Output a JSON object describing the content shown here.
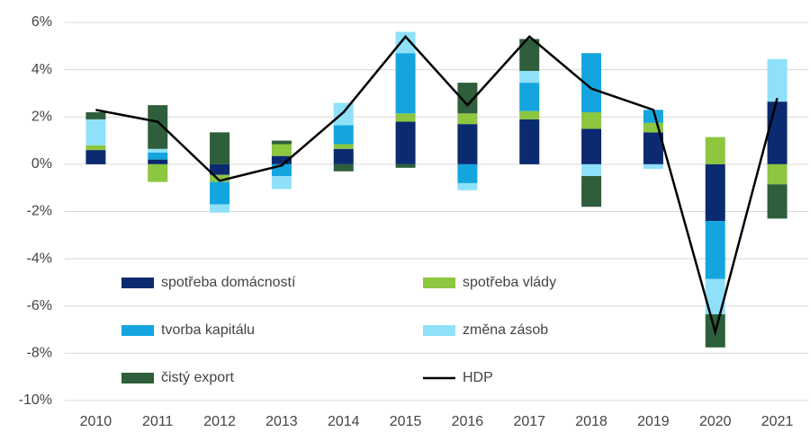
{
  "chart_data": {
    "type": "bar",
    "categories": [
      "2010",
      "2011",
      "2012",
      "2013",
      "2014",
      "2015",
      "2016",
      "2017",
      "2018",
      "2019",
      "2020",
      "2021"
    ],
    "series": [
      {
        "name": "spotřeba domácností",
        "color": "#0b2a6f",
        "values": [
          0.6,
          0.2,
          -0.45,
          0.35,
          0.65,
          1.8,
          1.7,
          1.9,
          1.5,
          1.35,
          -2.4,
          2.65
        ]
      },
      {
        "name": "spotřeba vlády",
        "color": "#8dc63f",
        "values": [
          0.2,
          -0.75,
          -0.3,
          0.5,
          0.2,
          0.35,
          0.45,
          0.35,
          0.7,
          0.4,
          1.15,
          -0.85
        ]
      },
      {
        "name": "tvorba kapitálu",
        "color": "#14a5de",
        "values": [
          0,
          0.3,
          -0.95,
          -0.5,
          0.8,
          2.55,
          -0.8,
          1.2,
          2.5,
          0.55,
          -2.45,
          0
        ]
      },
      {
        "name": "změna zásob",
        "color": "#8fe1f9",
        "values": [
          1.1,
          0.15,
          -0.35,
          -0.55,
          0.95,
          0.9,
          -0.3,
          0.5,
          -0.5,
          -0.2,
          -1.5,
          1.8
        ]
      },
      {
        "name": "čistý export",
        "color": "#2e5e3b",
        "values": [
          0.3,
          1.85,
          1.35,
          0.15,
          -0.3,
          -0.15,
          1.3,
          1.35,
          -1.3,
          0,
          -1.4,
          -1.45
        ]
      },
      {
        "name": "HDP",
        "type": "line",
        "color": "#000000",
        "values": [
          2.3,
          1.8,
          -0.7,
          -0.05,
          2.2,
          5.4,
          2.5,
          5.4,
          3.2,
          2.3,
          -7.1,
          2.8
        ]
      }
    ],
    "ylim": [
      -10,
      6
    ],
    "yticks": [
      {
        "value": -10,
        "label": "-10%"
      },
      {
        "value": -8,
        "label": "-8%"
      },
      {
        "value": -6,
        "label": "-6%"
      },
      {
        "value": -4,
        "label": "-4%"
      },
      {
        "value": -2,
        "label": "-2%"
      },
      {
        "value": 0,
        "label": "0%"
      },
      {
        "value": 2,
        "label": "2%"
      },
      {
        "value": 4,
        "label": "4%"
      },
      {
        "value": 6,
        "label": "6%"
      }
    ],
    "grid": true,
    "stacked": true
  }
}
